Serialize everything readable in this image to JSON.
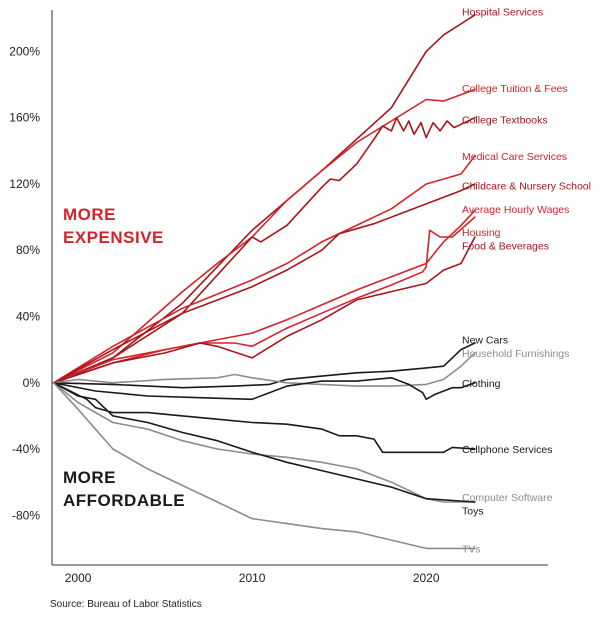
{
  "source": "Source: Bureau of Labor Statistics",
  "annotations": {
    "expensive_line1": "MORE",
    "expensive_line2": "EXPENSIVE",
    "affordable_line1": "MORE",
    "affordable_line2": "AFFORDABLE"
  },
  "colors": {
    "red": "#d3242b",
    "dark_red": "#a8151c",
    "black": "#1a1a1a",
    "grey": "#8c8c8c",
    "axis": "#333333",
    "expensive_text": "#d3242b",
    "affordable_text": "#1a1a1a"
  },
  "chart_data": {
    "type": "line",
    "title": "",
    "xlabel": "",
    "ylabel": "",
    "xlim": [
      1998.5,
      2027
    ],
    "ylim": [
      -110,
      225
    ],
    "x_ticks": [
      2000,
      2010,
      2020
    ],
    "x_tick_labels": [
      "2000",
      "2010",
      "2020"
    ],
    "y_ticks": [
      200,
      160,
      120,
      80,
      40,
      0,
      -40,
      -80
    ],
    "y_tick_labels": [
      "200%",
      "160%",
      "120%",
      "80%",
      "40%",
      "0%",
      "-40%",
      "-80%"
    ],
    "series": [
      {
        "name": "Hospital Services",
        "color": "dark_red",
        "points": [
          [
            1998.6,
            0
          ],
          [
            2002,
            15
          ],
          [
            2006,
            48
          ],
          [
            2010,
            92
          ],
          [
            2014,
            128
          ],
          [
            2018,
            166
          ],
          [
            2020,
            200
          ],
          [
            2021,
            210
          ],
          [
            2022.8,
            222
          ]
        ]
      },
      {
        "name": "College Tuition & Fees",
        "color": "red",
        "points": [
          [
            1998.6,
            0
          ],
          [
            2002,
            18
          ],
          [
            2006,
            55
          ],
          [
            2008,
            72
          ],
          [
            2010,
            88
          ],
          [
            2012,
            110
          ],
          [
            2014,
            128
          ],
          [
            2016,
            145
          ],
          [
            2018,
            158
          ],
          [
            2020,
            171
          ],
          [
            2021,
            170
          ],
          [
            2022.8,
            177
          ]
        ]
      },
      {
        "name": "College Textbooks",
        "color": "dark_red",
        "points": [
          [
            1998.6,
            0
          ],
          [
            2002,
            15
          ],
          [
            2006,
            42
          ],
          [
            2010,
            88
          ],
          [
            2010.5,
            85
          ],
          [
            2012,
            95
          ],
          [
            2014,
            118
          ],
          [
            2014.5,
            123
          ],
          [
            2015,
            122
          ],
          [
            2016,
            132
          ],
          [
            2017,
            147
          ],
          [
            2017.5,
            155
          ],
          [
            2018,
            152
          ],
          [
            2018.3,
            160
          ],
          [
            2018.7,
            152
          ],
          [
            2019,
            158
          ],
          [
            2019.3,
            150
          ],
          [
            2019.7,
            157
          ],
          [
            2020,
            148
          ],
          [
            2020.4,
            157
          ],
          [
            2020.8,
            152
          ],
          [
            2021.2,
            158
          ],
          [
            2021.6,
            154
          ],
          [
            2022,
            156
          ],
          [
            2022.8,
            160
          ]
        ]
      },
      {
        "name": "Medical Care Services",
        "color": "red",
        "points": [
          [
            1998.6,
            0
          ],
          [
            2002,
            22
          ],
          [
            2006,
            45
          ],
          [
            2010,
            62
          ],
          [
            2012,
            72
          ],
          [
            2014,
            85
          ],
          [
            2016,
            95
          ],
          [
            2018,
            105
          ],
          [
            2020,
            120
          ],
          [
            2021,
            123
          ],
          [
            2022,
            126
          ],
          [
            2022.8,
            137
          ]
        ]
      },
      {
        "name": "Childcare & Nursery School",
        "color": "dark_red",
        "points": [
          [
            1998.6,
            0
          ],
          [
            2002,
            20
          ],
          [
            2006,
            42
          ],
          [
            2010,
            58
          ],
          [
            2012,
            68
          ],
          [
            2014,
            80
          ],
          [
            2015,
            90
          ],
          [
            2017,
            96
          ],
          [
            2019,
            104
          ],
          [
            2021,
            112
          ],
          [
            2022,
            116
          ],
          [
            2022.8,
            120
          ]
        ]
      },
      {
        "name": "Average Hourly Wages",
        "color": "red",
        "points": [
          [
            1998.6,
            0
          ],
          [
            2002,
            12
          ],
          [
            2005,
            20
          ],
          [
            2007,
            24
          ],
          [
            2010,
            30
          ],
          [
            2012,
            38
          ],
          [
            2014,
            47
          ],
          [
            2016,
            56
          ],
          [
            2018,
            64
          ],
          [
            2020,
            72
          ],
          [
            2021,
            85
          ],
          [
            2022,
            95
          ],
          [
            2022.8,
            104
          ]
        ]
      },
      {
        "name": "Housing",
        "color": "red",
        "points": [
          [
            1998.6,
            0
          ],
          [
            2002,
            14
          ],
          [
            2005,
            20
          ],
          [
            2007,
            24
          ],
          [
            2009,
            24
          ],
          [
            2010,
            22
          ],
          [
            2012,
            33
          ],
          [
            2014,
            42
          ],
          [
            2016,
            51
          ],
          [
            2018,
            59
          ],
          [
            2019.8,
            67
          ],
          [
            2020,
            70
          ],
          [
            2020.2,
            92
          ],
          [
            2020.8,
            88
          ],
          [
            2021.5,
            88
          ],
          [
            2022.8,
            100
          ]
        ]
      },
      {
        "name": "Food & Beverages",
        "color": "dark_red",
        "points": [
          [
            1998.6,
            0
          ],
          [
            2002,
            12
          ],
          [
            2005,
            18
          ],
          [
            2007,
            24
          ],
          [
            2008,
            22
          ],
          [
            2010,
            15
          ],
          [
            2012,
            28
          ],
          [
            2014,
            38
          ],
          [
            2016,
            50
          ],
          [
            2018,
            55
          ],
          [
            2020,
            60
          ],
          [
            2021,
            68
          ],
          [
            2022,
            72
          ],
          [
            2022.8,
            88
          ]
        ]
      },
      {
        "name": "New Cars",
        "color": "black",
        "points": [
          [
            1998.6,
            0
          ],
          [
            2002,
            -1
          ],
          [
            2006,
            -3
          ],
          [
            2009,
            -2
          ],
          [
            2011,
            -1
          ],
          [
            2012,
            2
          ],
          [
            2014,
            4
          ],
          [
            2016,
            6
          ],
          [
            2018,
            7
          ],
          [
            2020,
            9
          ],
          [
            2021,
            10
          ],
          [
            2021.5,
            15
          ],
          [
            2022,
            20
          ],
          [
            2022.8,
            24
          ]
        ]
      },
      {
        "name": "Household Furnishings",
        "color": "grey",
        "points": [
          [
            1998.6,
            0
          ],
          [
            2000,
            2
          ],
          [
            2002,
            0
          ],
          [
            2005,
            2
          ],
          [
            2008,
            3
          ],
          [
            2009,
            5
          ],
          [
            2010,
            3
          ],
          [
            2012,
            0
          ],
          [
            2014,
            -1
          ],
          [
            2016,
            -2
          ],
          [
            2018,
            -2
          ],
          [
            2020,
            -1
          ],
          [
            2021,
            2
          ],
          [
            2022,
            10
          ],
          [
            2022.8,
            18
          ]
        ]
      },
      {
        "name": "Clothing",
        "color": "black",
        "points": [
          [
            1998.6,
            0
          ],
          [
            2001,
            -5
          ],
          [
            2004,
            -8
          ],
          [
            2007,
            -9
          ],
          [
            2010,
            -10
          ],
          [
            2012,
            -2
          ],
          [
            2014,
            1
          ],
          [
            2016,
            1
          ],
          [
            2018,
            3
          ],
          [
            2019,
            -1
          ],
          [
            2019.8,
            -6
          ],
          [
            2020,
            -10
          ],
          [
            2020.5,
            -7
          ],
          [
            2021.5,
            -3
          ],
          [
            2022,
            -3
          ],
          [
            2022.8,
            0
          ]
        ]
      },
      {
        "name": "Cellphone Services",
        "color": "black",
        "points": [
          [
            1998.6,
            0
          ],
          [
            2000.5,
            -10
          ],
          [
            2001,
            -15
          ],
          [
            2002,
            -18
          ],
          [
            2004,
            -18
          ],
          [
            2006,
            -20
          ],
          [
            2008,
            -22
          ],
          [
            2010,
            -24
          ],
          [
            2012,
            -25
          ],
          [
            2014,
            -28
          ],
          [
            2015,
            -32
          ],
          [
            2016,
            -32
          ],
          [
            2017,
            -34
          ],
          [
            2017.5,
            -42
          ],
          [
            2019,
            -42
          ],
          [
            2021,
            -42
          ],
          [
            2021.5,
            -39
          ],
          [
            2022.8,
            -40
          ]
        ]
      },
      {
        "name": "Computer Software",
        "color": "grey",
        "points": [
          [
            1998.6,
            0
          ],
          [
            2000,
            -12
          ],
          [
            2002,
            -24
          ],
          [
            2004,
            -28
          ],
          [
            2006,
            -35
          ],
          [
            2008,
            -40
          ],
          [
            2010,
            -43
          ],
          [
            2012,
            -45
          ],
          [
            2014,
            -48
          ],
          [
            2016,
            -52
          ],
          [
            2018,
            -60
          ],
          [
            2020,
            -70
          ],
          [
            2021,
            -72
          ],
          [
            2022.8,
            -72
          ]
        ]
      },
      {
        "name": "Toys",
        "color": "black",
        "points": [
          [
            1998.6,
            0
          ],
          [
            2000,
            -8
          ],
          [
            2001,
            -10
          ],
          [
            2002,
            -20
          ],
          [
            2004,
            -24
          ],
          [
            2006,
            -30
          ],
          [
            2008,
            -35
          ],
          [
            2010,
            -42
          ],
          [
            2012,
            -48
          ],
          [
            2014,
            -53
          ],
          [
            2016,
            -58
          ],
          [
            2018,
            -63
          ],
          [
            2020,
            -70
          ],
          [
            2022.8,
            -72
          ]
        ]
      },
      {
        "name": "TVs",
        "color": "grey",
        "points": [
          [
            1998.6,
            0
          ],
          [
            2000,
            -16
          ],
          [
            2002,
            -40
          ],
          [
            2004,
            -52
          ],
          [
            2006,
            -62
          ],
          [
            2008,
            -72
          ],
          [
            2010,
            -82
          ],
          [
            2012,
            -85
          ],
          [
            2014,
            -88
          ],
          [
            2016,
            -90
          ],
          [
            2018,
            -95
          ],
          [
            2020,
            -100
          ],
          [
            2022.8,
            -100
          ]
        ]
      }
    ],
    "labels": [
      {
        "series": "Hospital Services",
        "text": "Hospital Services",
        "y": 224,
        "color": "dark_red"
      },
      {
        "series": "College Tuition & Fees",
        "text": "College Tuition & Fees",
        "y": 178,
        "color": "red"
      },
      {
        "series": "College Textbooks",
        "text": "College Textbooks",
        "y": 159,
        "color": "dark_red"
      },
      {
        "series": "Medical Care Services",
        "text": "Medical Care Services",
        "y": 137,
        "color": "red"
      },
      {
        "series": "Childcare & Nursery School",
        "text": "Childcare & Nursery School",
        "y": 119,
        "color": "dark_red"
      },
      {
        "series": "Average Hourly Wages",
        "text": "Average Hourly Wages",
        "y": 105,
        "color": "red"
      },
      {
        "series": "Housing",
        "text": "Housing",
        "y": 91,
        "color": "red"
      },
      {
        "series": "Food & Beverages",
        "text": "Food & Beverages",
        "y": 83,
        "color": "dark_red"
      },
      {
        "series": "New Cars",
        "text": "New Cars",
        "y": 26,
        "color": "black"
      },
      {
        "series": "Household Furnishings",
        "text": "Household Furnishings",
        "y": 18,
        "color": "grey"
      },
      {
        "series": "Clothing",
        "text": "Clothing",
        "y": 0,
        "color": "black"
      },
      {
        "series": "Cellphone Services",
        "text": "Cellphone Services",
        "y": -40,
        "color": "black"
      },
      {
        "series": "Computer Software",
        "text": "Computer Software",
        "y": -69,
        "color": "grey"
      },
      {
        "series": "Toys",
        "text": "Toys",
        "y": -77,
        "color": "black"
      },
      {
        "series": "TVs",
        "text": "TVs",
        "y": -100,
        "color": "grey"
      }
    ]
  }
}
